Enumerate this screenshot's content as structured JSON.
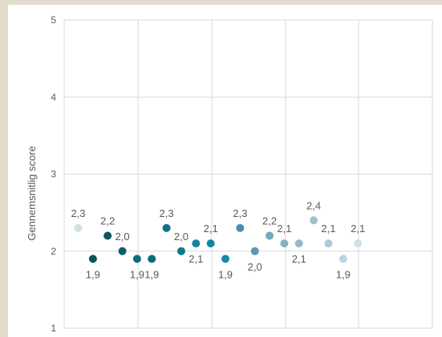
{
  "chart_data": {
    "type": "scatter",
    "title": "",
    "xlabel": "",
    "ylabel": "Gennemsnitlig score",
    "ylim": [
      1,
      5
    ],
    "yticks": [
      "1",
      "2",
      "3",
      "4",
      "5"
    ],
    "grid": true,
    "legend": "none",
    "points": [
      {
        "x": 1,
        "y": 2.3,
        "label": "2,3",
        "color": "#cfe0e6"
      },
      {
        "x": 2,
        "y": 1.9,
        "label": "1,9",
        "color": "#0b5563"
      },
      {
        "x": 3,
        "y": 2.2,
        "label": "2,2",
        "color": "#0b5563"
      },
      {
        "x": 4,
        "y": 2.0,
        "label": "2,0",
        "color": "#0b5e6e"
      },
      {
        "x": 5,
        "y": 1.9,
        "label": "1,9",
        "color": "#0c6a7b"
      },
      {
        "x": 6,
        "y": 1.9,
        "label": "1,9",
        "color": "#0c6a7b"
      },
      {
        "x": 7,
        "y": 2.3,
        "label": "2,3",
        "color": "#0c728a"
      },
      {
        "x": 8,
        "y": 2.0,
        "label": "2,0",
        "color": "#0d7a91"
      },
      {
        "x": 9,
        "y": 2.1,
        "label": "2,1",
        "color": "#1486a0"
      },
      {
        "x": 10,
        "y": 2.1,
        "label": "2,1",
        "color": "#1486a0"
      },
      {
        "x": 11,
        "y": 1.9,
        "label": "1,9",
        "color": "#1a8aa4"
      },
      {
        "x": 12,
        "y": 2.3,
        "label": "2,3",
        "color": "#4b8fae"
      },
      {
        "x": 13,
        "y": 2.0,
        "label": "2,0",
        "color": "#5b97b2"
      },
      {
        "x": 14,
        "y": 2.2,
        "label": "2,2",
        "color": "#74a6be"
      },
      {
        "x": 15,
        "y": 2.1,
        "label": "2,1",
        "color": "#86b0c4"
      },
      {
        "x": 16,
        "y": 2.1,
        "label": "2,1",
        "color": "#93b8c8"
      },
      {
        "x": 17,
        "y": 2.4,
        "label": "2,4",
        "color": "#a0c0ce"
      },
      {
        "x": 18,
        "y": 2.1,
        "label": "2,1",
        "color": "#b0cad5"
      },
      {
        "x": 19,
        "y": 1.9,
        "label": "1,9",
        "color": "#bcd2dc"
      },
      {
        "x": 20,
        "y": 2.1,
        "label": "2,1",
        "color": "#cfe0e6"
      }
    ]
  }
}
